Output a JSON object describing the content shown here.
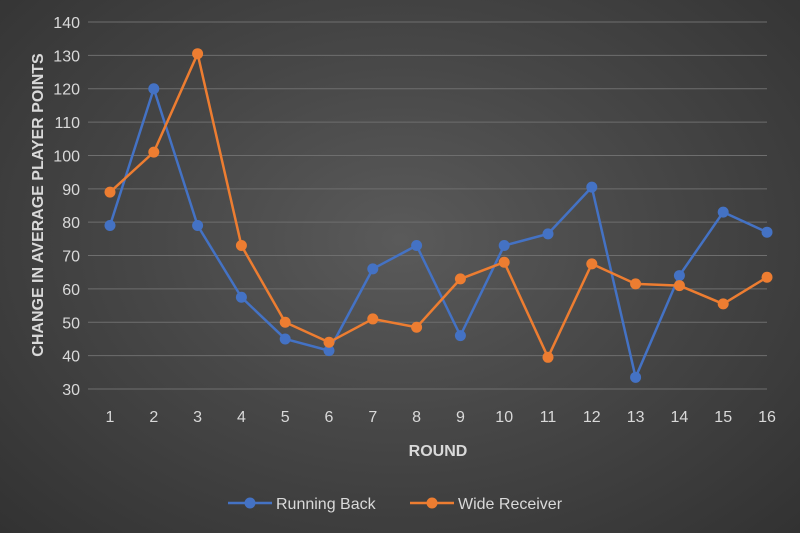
{
  "chart_data": {
    "type": "line",
    "title": "",
    "xlabel": "ROUND",
    "ylabel": "CHANGE IN AVERAGE PLAYER POINTS",
    "categories": [
      "1",
      "2",
      "3",
      "4",
      "5",
      "6",
      "7",
      "8",
      "9",
      "10",
      "11",
      "12",
      "13",
      "14",
      "15",
      "16"
    ],
    "ylim": [
      30,
      140
    ],
    "yticks": [
      30,
      40,
      50,
      60,
      70,
      80,
      90,
      100,
      110,
      120,
      130,
      140
    ],
    "grid": true,
    "legend_position": "bottom",
    "series": [
      {
        "name": "Running Back",
        "color": "#4472c4",
        "values": [
          79,
          120,
          79,
          57.5,
          45,
          41.5,
          66,
          73,
          46,
          73,
          76.5,
          90.5,
          33.5,
          64,
          83,
          77
        ]
      },
      {
        "name": "Wide Receiver",
        "color": "#ed7d31",
        "values": [
          89,
          101,
          130.5,
          73,
          50,
          44,
          51,
          48.5,
          63,
          68,
          39.5,
          67.5,
          61.5,
          61,
          55.5,
          63.5
        ]
      }
    ]
  }
}
